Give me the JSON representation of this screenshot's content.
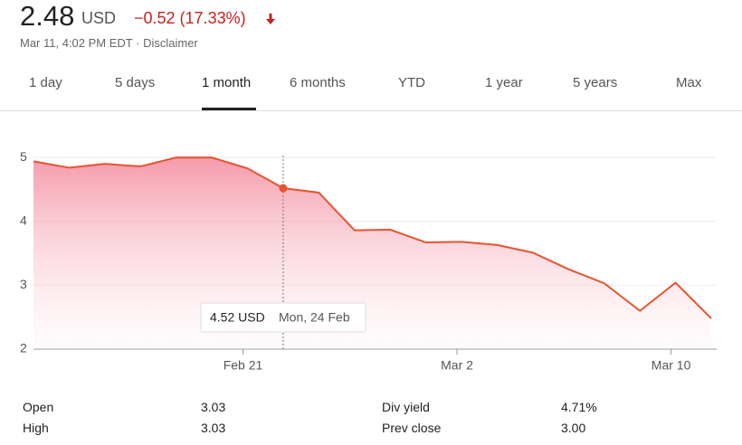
{
  "header": {
    "price": "2.48",
    "currency": "USD",
    "change": "−0.52 (17.33%)",
    "timestamp": "Mar 11, 4:02 PM EDT",
    "disclaimer": "Disclaimer"
  },
  "tabs": {
    "items": [
      "1 day",
      "5 days",
      "1 month",
      "6 months",
      "YTD",
      "1 year",
      "5 years",
      "Max"
    ],
    "selected": "1 month"
  },
  "chart_data": {
    "type": "area",
    "categories": [
      null,
      null,
      null,
      null,
      null,
      null,
      "Feb 21",
      null,
      null,
      null,
      null,
      null,
      "Mar 2",
      null,
      null,
      null,
      null,
      null,
      "Mar 10",
      null
    ],
    "series": [
      {
        "name": null,
        "color": "#e8532f",
        "values": [
          4.94,
          4.84,
          4.9,
          4.86,
          5.0,
          5.0,
          4.83,
          4.52,
          4.45,
          3.86,
          3.87,
          3.67,
          3.68,
          3.63,
          3.51,
          3.25,
          3.03,
          2.6,
          3.04,
          2.48
        ]
      }
    ],
    "ylim": [
      2,
      5.2
    ],
    "yticks": [
      2,
      3,
      4,
      5
    ],
    "grid": true,
    "tooltip": {
      "value": 4.52,
      "label": "4.52 USD",
      "date": "Mon, 24 Feb"
    }
  },
  "stats": {
    "left": [
      {
        "label": "Open",
        "value": "3.03"
      },
      {
        "label": "High",
        "value": "3.03"
      }
    ],
    "right": [
      {
        "label": "Div yield",
        "value": "4.71%"
      },
      {
        "label": "Prev close",
        "value": "3.00"
      }
    ]
  }
}
